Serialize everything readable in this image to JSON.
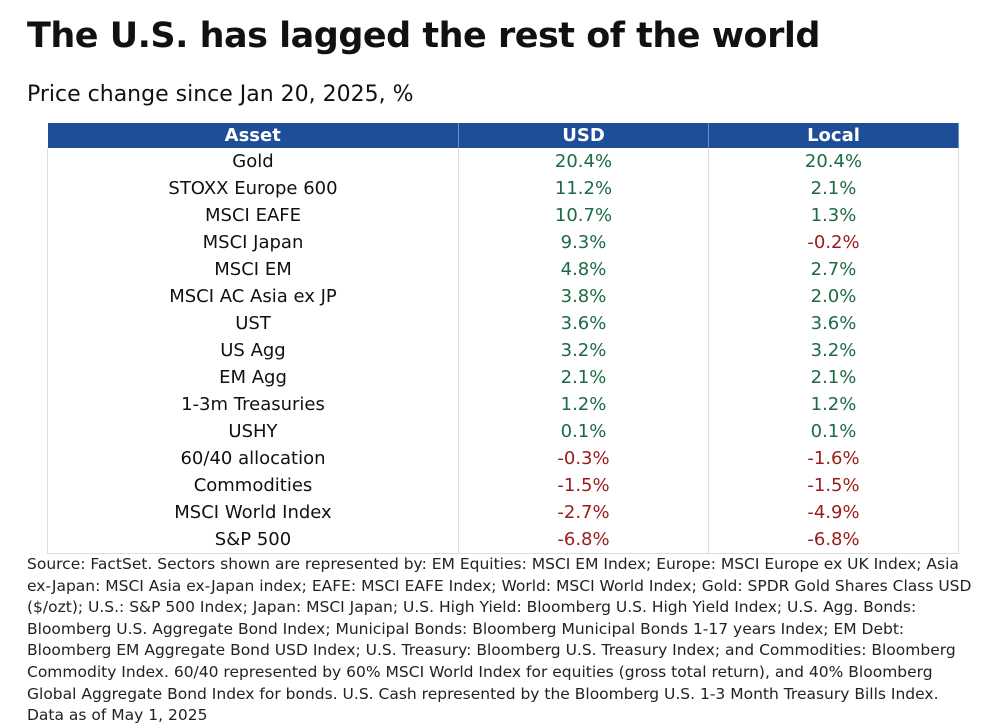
{
  "header": {
    "title": "The U.S. has lagged the rest of the world",
    "subtitle": "Price change since Jan 20, 2025, %"
  },
  "table": {
    "columns": [
      "Asset",
      "USD",
      "Local"
    ],
    "rows": [
      [
        "Gold",
        "20.4%",
        "20.4%"
      ],
      [
        "STOXX Europe 600",
        "11.2%",
        "2.1%"
      ],
      [
        "MSCI EAFE",
        "10.7%",
        "1.3%"
      ],
      [
        "MSCI Japan",
        "9.3%",
        "-0.2%"
      ],
      [
        "MSCI EM",
        "4.8%",
        "2.7%"
      ],
      [
        "MSCI AC Asia ex JP",
        "3.8%",
        "2.0%"
      ],
      [
        "UST",
        "3.6%",
        "3.6%"
      ],
      [
        "US Agg",
        "3.2%",
        "3.2%"
      ],
      [
        "EM Agg",
        "2.1%",
        "2.1%"
      ],
      [
        "1-3m Treasuries",
        "1.2%",
        "1.2%"
      ],
      [
        "USHY",
        "0.1%",
        "0.1%"
      ],
      [
        "60/40 allocation",
        "-0.3%",
        "-1.6%"
      ],
      [
        "Commodities",
        "-1.5%",
        "-1.5%"
      ],
      [
        "MSCI World Index",
        "-2.7%",
        "-4.9%"
      ],
      [
        "S&P 500",
        "-6.8%",
        "-6.8%"
      ]
    ]
  },
  "footnote": "Source: FactSet. Sectors shown are represented by: EM Equities: MSCI EM Index; Europe: MSCI Europe ex UK Index; Asia ex-Japan: MSCI Asia ex-Japan index; EAFE: MSCI EAFE Index; World: MSCI World Index; Gold: SPDR Gold Shares Class USD ($/ozt); U.S.: S&P 500 Index; Japan: MSCI Japan; U.S. High Yield: Bloomberg U.S. High Yield Index; U.S. Agg. Bonds: Bloomberg U.S. Aggregate Bond Index; Municipal Bonds: Bloomberg Municipal Bonds 1-17 years Index; EM Debt: Bloomberg EM Aggregate Bond USD Index; U.S. Treasury: Bloomberg U.S. Treasury Index; and Commodities: Bloomberg Commodity Index. 60/40 represented by 60% MSCI World Index for equities (gross total return), and 40% Bloomberg Global Aggregate Bond Index for bonds. U.S. Cash represented by the Bloomberg U.S. 1-3 Month Treasury Bills Index. Data as of May 1, 2025"
}
